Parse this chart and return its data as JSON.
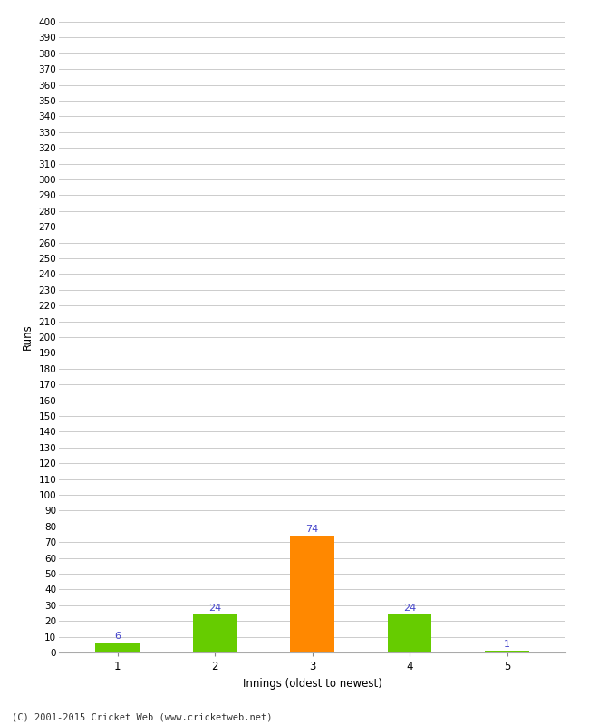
{
  "categories": [
    "1",
    "2",
    "3",
    "4",
    "5"
  ],
  "values": [
    6,
    24,
    74,
    24,
    1
  ],
  "bar_colors": [
    "#66cc00",
    "#66cc00",
    "#ff8800",
    "#66cc00",
    "#66cc00"
  ],
  "ylabel": "Runs",
  "xlabel": "Innings (oldest to newest)",
  "ylim": [
    0,
    400
  ],
  "yticks": [
    0,
    10,
    20,
    30,
    40,
    50,
    60,
    70,
    80,
    90,
    100,
    110,
    120,
    130,
    140,
    150,
    160,
    170,
    180,
    190,
    200,
    210,
    220,
    230,
    240,
    250,
    260,
    270,
    280,
    290,
    300,
    310,
    320,
    330,
    340,
    350,
    360,
    370,
    380,
    390,
    400
  ],
  "label_color": "#4444cc",
  "footer": "(C) 2001-2015 Cricket Web (www.cricketweb.net)",
  "background_color": "#ffffff",
  "grid_color": "#cccccc",
  "bar_width": 0.45
}
